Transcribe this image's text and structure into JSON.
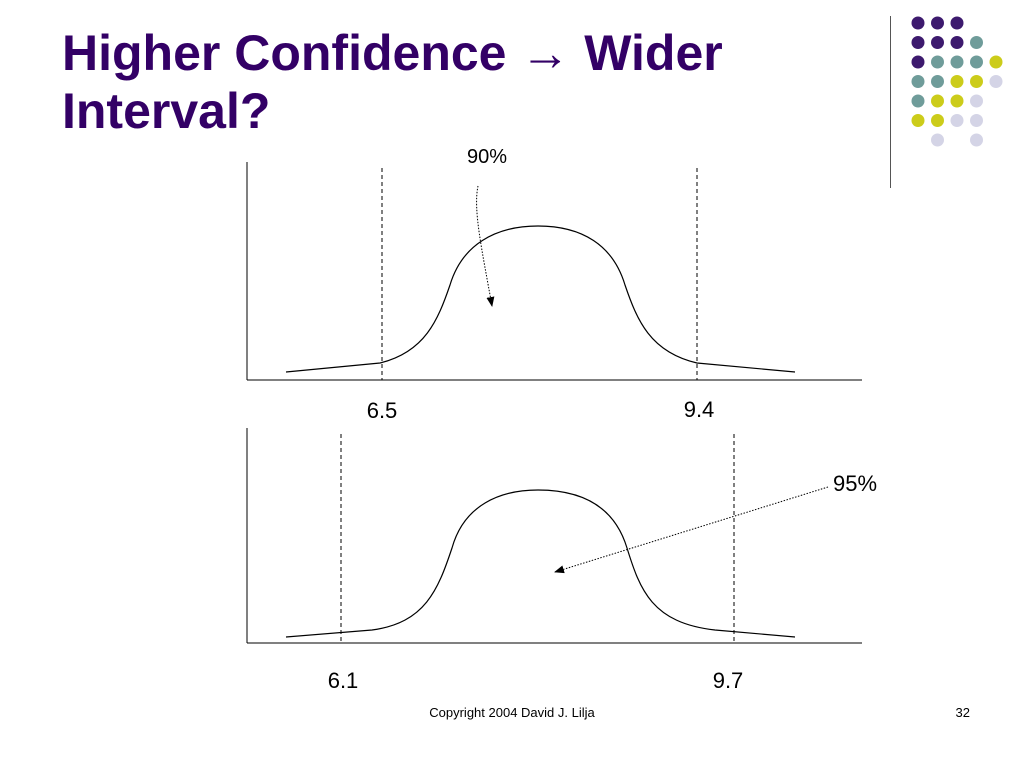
{
  "slide": {
    "title_lines": [
      "Higher Confidence → Wider",
      "Interval?"
    ],
    "copyright": "Copyright 2004 David J. Lilja",
    "page_number": "32"
  },
  "colors": {
    "title": "#330066",
    "dot_purple": "#3d1a6e",
    "dot_teal": "#6f9c9a",
    "dot_yellow": "#cccc1a",
    "dot_lavender": "#d4d4e6"
  },
  "decoration": {
    "dot_grid": [
      [
        "purple",
        "purple",
        "purple",
        null,
        null
      ],
      [
        "purple",
        "purple",
        "purple",
        "teal",
        null
      ],
      [
        "purple",
        "teal",
        "teal",
        "teal",
        "yellow"
      ],
      [
        "teal",
        "teal",
        "yellow",
        "yellow",
        "lavender"
      ],
      [
        "teal",
        "yellow",
        "yellow",
        "lavender",
        null
      ],
      [
        "yellow",
        "yellow",
        "lavender",
        "lavender",
        null
      ],
      [
        null,
        "lavender",
        null,
        "lavender",
        null
      ]
    ]
  },
  "diagram": {
    "top": {
      "confidence_label": "90%",
      "lower_bound": "6.5",
      "upper_bound": "9.4"
    },
    "bottom": {
      "confidence_label": "95%",
      "lower_bound": "6.1",
      "upper_bound": "9.7"
    }
  }
}
